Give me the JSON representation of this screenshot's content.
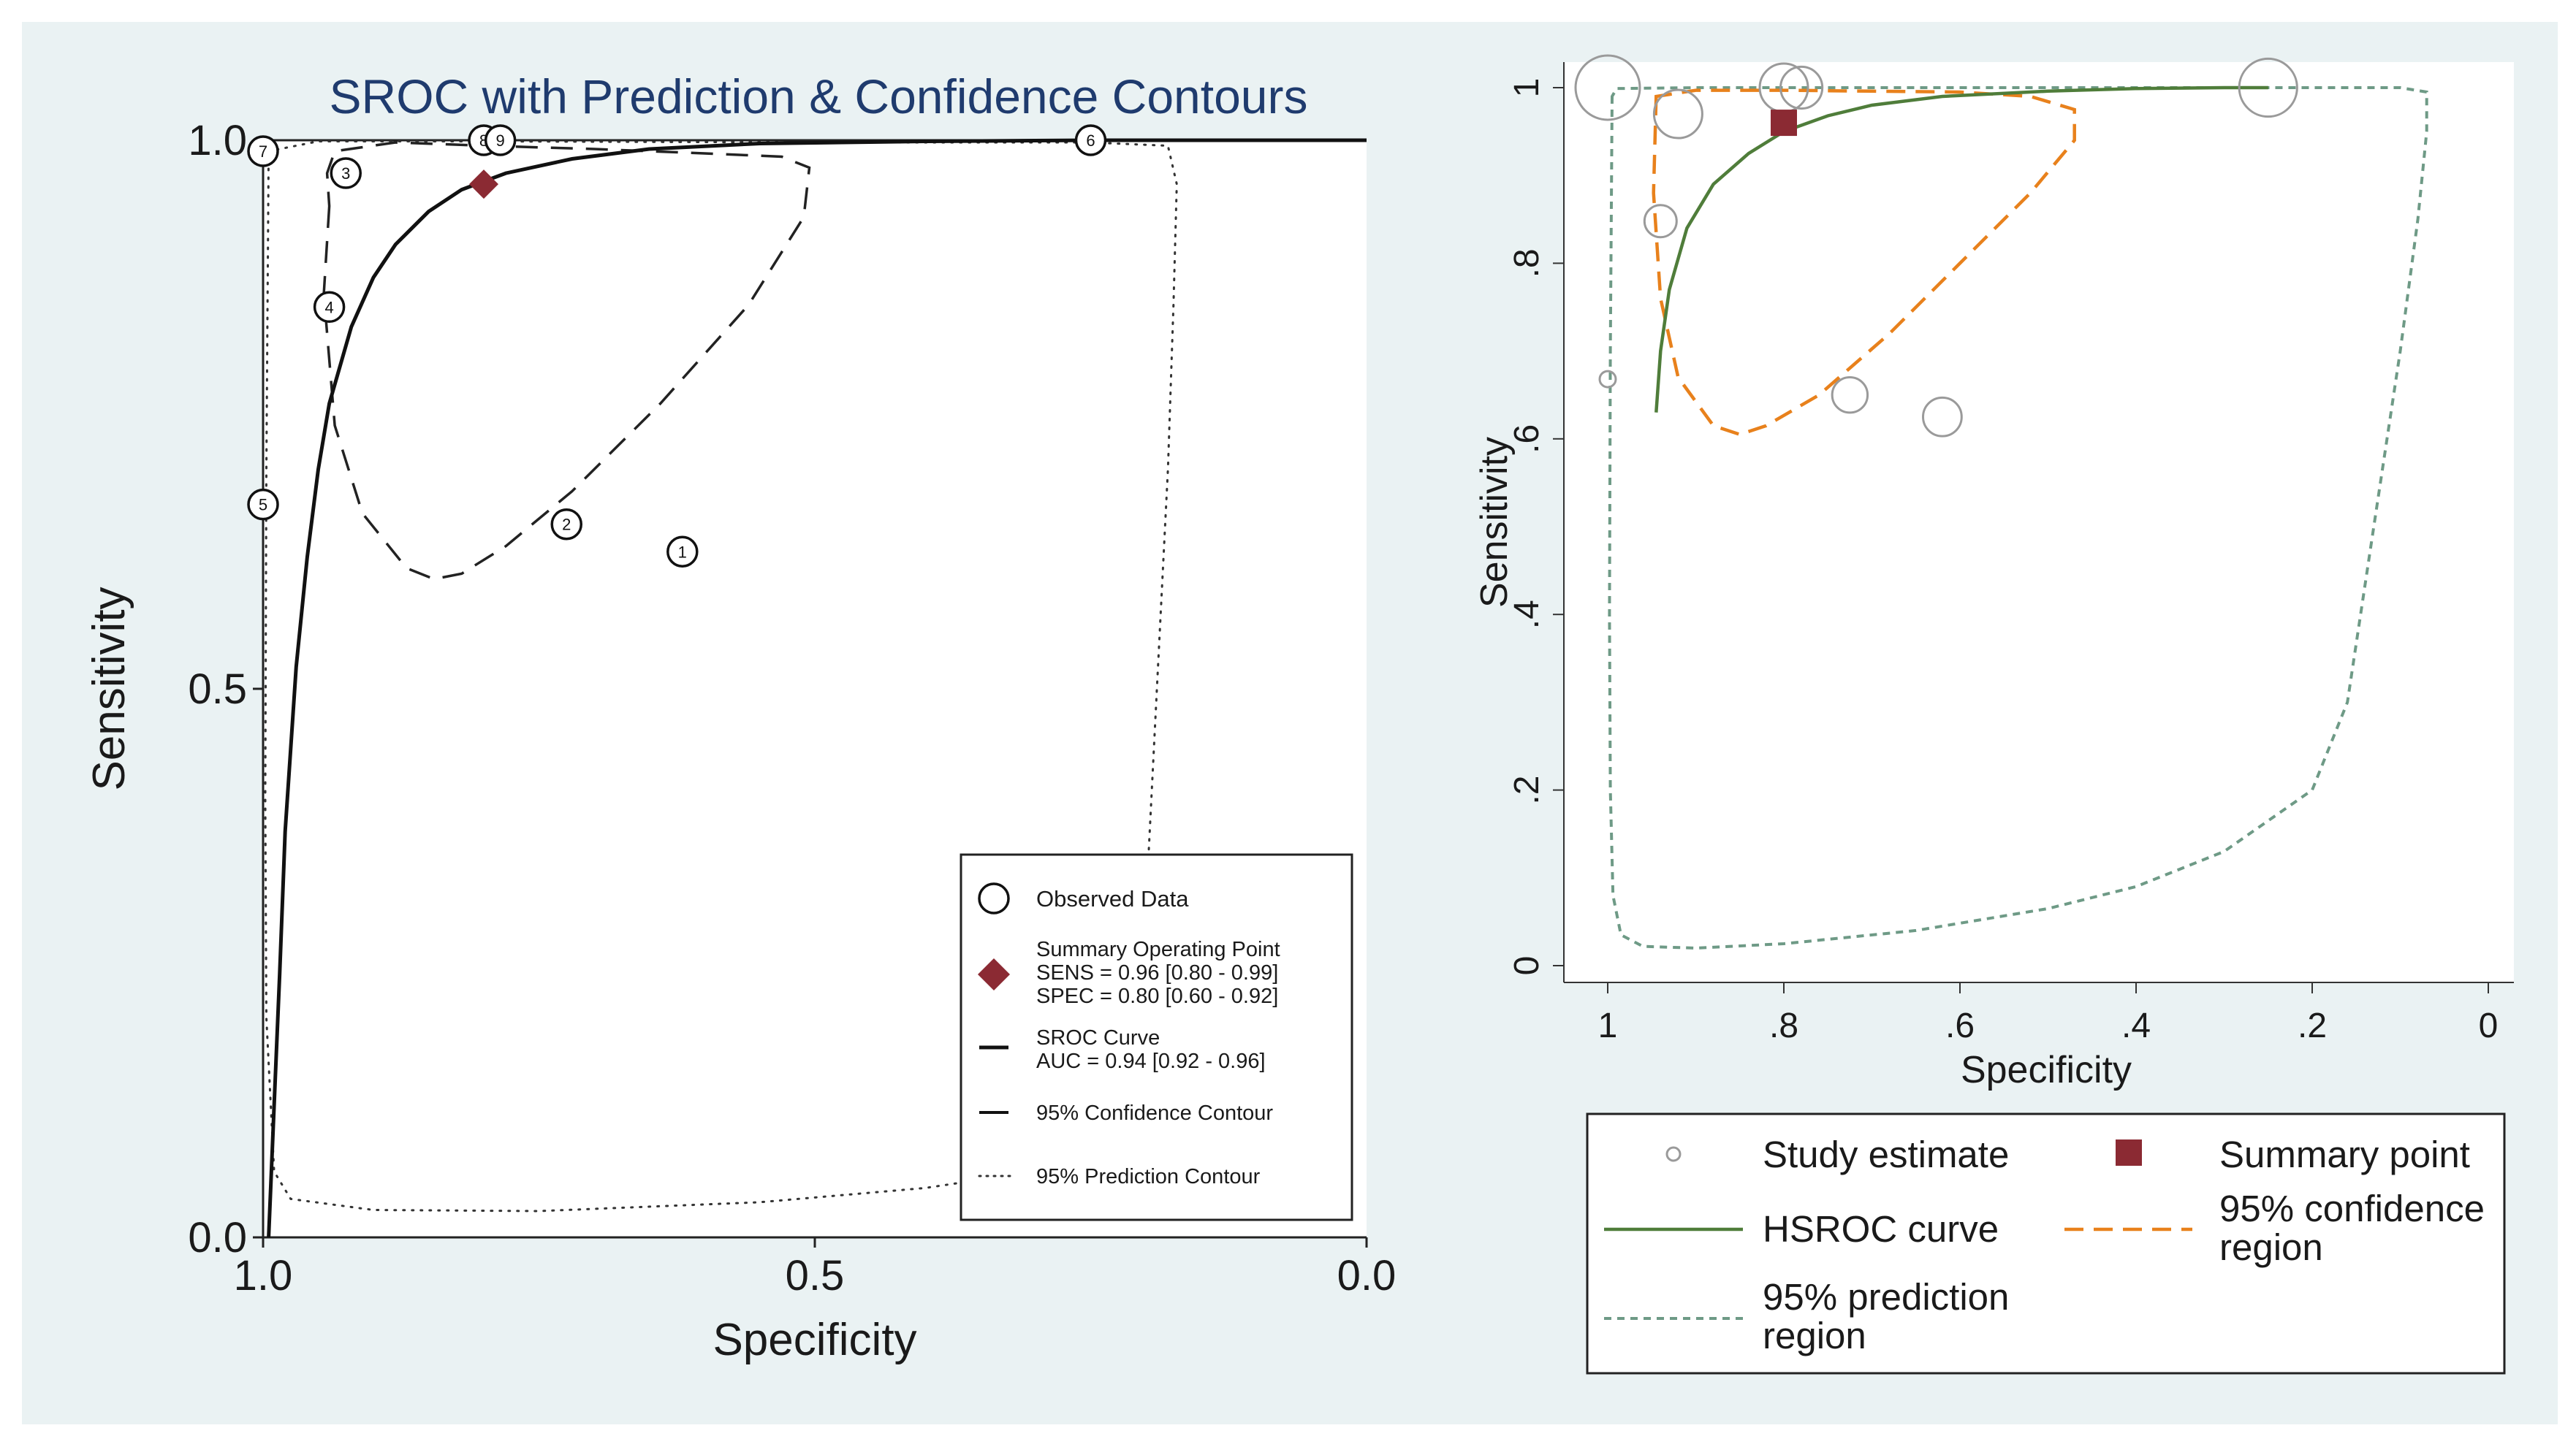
{
  "colors": {
    "panel_bg": "#eaf2f3",
    "plot_bg": "#ffffff",
    "title": "#1f3b6e",
    "summary_left": "#8b2a33",
    "summary_right": "#8b2a33",
    "hsroc": "#4f7d3a",
    "confidence_right": "#e8811c",
    "prediction_right": "#6e9a86",
    "study_right": "#9a9a9a",
    "text": "#1a1a1a"
  },
  "chart_data": [
    {
      "type": "scatter",
      "title": "SROC with Prediction & Confidence Contours",
      "xlabel": "Specificity",
      "ylabel": "Sensitivity",
      "xlim": [
        1.0,
        0.0
      ],
      "ylim": [
        0.0,
        1.0
      ],
      "x_reversed": true,
      "xticks": [
        "1.0",
        "0.5",
        "0.0"
      ],
      "xtick_values": [
        1.0,
        0.5,
        0.0
      ],
      "yticks": [
        "0.0",
        "0.5",
        "1.0"
      ],
      "ytick_values": [
        0.0,
        0.5,
        1.0
      ],
      "observed": [
        {
          "label": "1",
          "spec": 0.62,
          "sens": 0.625
        },
        {
          "label": "2",
          "spec": 0.725,
          "sens": 0.65
        },
        {
          "label": "3",
          "spec": 0.925,
          "sens": 0.97
        },
        {
          "label": "4",
          "spec": 0.94,
          "sens": 0.848
        },
        {
          "label": "5",
          "spec": 1.0,
          "sens": 0.668
        },
        {
          "label": "6",
          "spec": 0.25,
          "sens": 1.0
        },
        {
          "label": "7",
          "spec": 1.0,
          "sens": 0.99
        },
        {
          "label": "8",
          "spec": 0.8,
          "sens": 1.0
        },
        {
          "label": "9",
          "spec": 0.785,
          "sens": 1.0
        }
      ],
      "summary": {
        "spec": 0.8,
        "sens": 0.96
      },
      "sroc_curve": [
        [
          0.995,
          0.0
        ],
        [
          0.99,
          0.12
        ],
        [
          0.985,
          0.24
        ],
        [
          0.98,
          0.37
        ],
        [
          0.97,
          0.52
        ],
        [
          0.96,
          0.62
        ],
        [
          0.95,
          0.7
        ],
        [
          0.94,
          0.76
        ],
        [
          0.92,
          0.83
        ],
        [
          0.9,
          0.875
        ],
        [
          0.88,
          0.905
        ],
        [
          0.85,
          0.935
        ],
        [
          0.82,
          0.955
        ],
        [
          0.78,
          0.97
        ],
        [
          0.72,
          0.983
        ],
        [
          0.65,
          0.992
        ],
        [
          0.55,
          0.997
        ],
        [
          0.4,
          0.999
        ],
        [
          0.25,
          1.0
        ],
        [
          0.0,
          1.0
        ]
      ],
      "confidence_contour": [
        [
          0.94,
          0.94
        ],
        [
          0.945,
          0.86
        ],
        [
          0.935,
          0.74
        ],
        [
          0.91,
          0.66
        ],
        [
          0.87,
          0.61
        ],
        [
          0.845,
          0.6
        ],
        [
          0.82,
          0.605
        ],
        [
          0.78,
          0.63
        ],
        [
          0.72,
          0.68
        ],
        [
          0.64,
          0.76
        ],
        [
          0.56,
          0.85
        ],
        [
          0.51,
          0.93
        ],
        [
          0.505,
          0.975
        ],
        [
          0.53,
          0.985
        ],
        [
          0.6,
          0.988
        ],
        [
          0.7,
          0.992
        ],
        [
          0.8,
          0.995
        ],
        [
          0.88,
          0.998
        ],
        [
          0.935,
          0.99
        ],
        [
          0.942,
          0.97
        ],
        [
          0.94,
          0.94
        ]
      ],
      "prediction_contour": [
        [
          0.995,
          0.99
        ],
        [
          0.997,
          0.7
        ],
        [
          0.998,
          0.4
        ],
        [
          0.997,
          0.2
        ],
        [
          0.99,
          0.06
        ],
        [
          0.975,
          0.035
        ],
        [
          0.9,
          0.025
        ],
        [
          0.75,
          0.024
        ],
        [
          0.55,
          0.032
        ],
        [
          0.4,
          0.045
        ],
        [
          0.3,
          0.06
        ],
        [
          0.25,
          0.085
        ],
        [
          0.22,
          0.15
        ],
        [
          0.2,
          0.3
        ],
        [
          0.19,
          0.5
        ],
        [
          0.18,
          0.7
        ],
        [
          0.175,
          0.85
        ],
        [
          0.172,
          0.96
        ],
        [
          0.18,
          0.995
        ],
        [
          0.25,
          0.998
        ],
        [
          0.5,
          0.998
        ],
        [
          0.8,
          0.999
        ],
        [
          0.95,
          0.999
        ],
        [
          0.995,
          0.99
        ]
      ],
      "legend": {
        "placement": "bottom-right",
        "observed": "Observed Data",
        "summary_title": "Summary Operating Point",
        "sens_text": "SENS = 0.96 [0.80 - 0.99]",
        "spec_text": "SPEC = 0.80 [0.60 - 0.92]",
        "sroc_title": "SROC Curve",
        "auc_text": "AUC = 0.94 [0.92 - 0.96]",
        "confidence": "95% Confidence Contour",
        "prediction": "95% Prediction Contour"
      }
    },
    {
      "type": "scatter",
      "title": "",
      "xlabel": "Specificity",
      "ylabel": "Sensitivity",
      "xlim": [
        1.0,
        0.0
      ],
      "ylim": [
        0.0,
        1.0
      ],
      "x_reversed": true,
      "xticks": [
        "1",
        ".8",
        ".6",
        ".4",
        ".2",
        "0"
      ],
      "xtick_values": [
        1.0,
        0.8,
        0.6,
        0.4,
        0.2,
        0.0
      ],
      "yticks": [
        "0",
        ".2",
        ".4",
        ".6",
        ".8",
        "1"
      ],
      "ytick_values": [
        0.0,
        0.2,
        0.4,
        0.6,
        0.8,
        1.0
      ],
      "studies": [
        {
          "spec": 1.0,
          "sens": 1.0,
          "weight": 2.0
        },
        {
          "spec": 0.92,
          "sens": 0.97,
          "weight": 1.5
        },
        {
          "spec": 0.94,
          "sens": 0.848,
          "weight": 1.0
        },
        {
          "spec": 1.0,
          "sens": 0.668,
          "weight": 0.5
        },
        {
          "spec": 0.8,
          "sens": 1.0,
          "weight": 1.5
        },
        {
          "spec": 0.78,
          "sens": 1.0,
          "weight": 1.3
        },
        {
          "spec": 0.725,
          "sens": 0.65,
          "weight": 1.1
        },
        {
          "spec": 0.62,
          "sens": 0.625,
          "weight": 1.2
        },
        {
          "spec": 0.25,
          "sens": 1.0,
          "weight": 1.8
        }
      ],
      "summary": {
        "spec": 0.8,
        "sens": 0.96
      },
      "hsroc_curve": [
        [
          0.945,
          0.63
        ],
        [
          0.94,
          0.7
        ],
        [
          0.93,
          0.77
        ],
        [
          0.91,
          0.84
        ],
        [
          0.88,
          0.89
        ],
        [
          0.84,
          0.925
        ],
        [
          0.8,
          0.95
        ],
        [
          0.75,
          0.968
        ],
        [
          0.7,
          0.98
        ],
        [
          0.62,
          0.99
        ],
        [
          0.5,
          0.996
        ],
        [
          0.4,
          0.999
        ],
        [
          0.3,
          1.0
        ],
        [
          0.25,
          1.0
        ]
      ],
      "confidence_region": [
        [
          0.945,
          0.99
        ],
        [
          0.948,
          0.88
        ],
        [
          0.94,
          0.76
        ],
        [
          0.92,
          0.67
        ],
        [
          0.88,
          0.615
        ],
        [
          0.85,
          0.605
        ],
        [
          0.82,
          0.615
        ],
        [
          0.76,
          0.65
        ],
        [
          0.68,
          0.72
        ],
        [
          0.6,
          0.8
        ],
        [
          0.52,
          0.88
        ],
        [
          0.47,
          0.94
        ],
        [
          0.47,
          0.975
        ],
        [
          0.52,
          0.99
        ],
        [
          0.6,
          0.995
        ],
        [
          0.7,
          0.996
        ],
        [
          0.8,
          0.997
        ],
        [
          0.9,
          0.997
        ],
        [
          0.945,
          0.99
        ]
      ],
      "prediction_region": [
        [
          0.995,
          0.99
        ],
        [
          0.997,
          0.7
        ],
        [
          0.998,
          0.4
        ],
        [
          0.997,
          0.2
        ],
        [
          0.994,
          0.08
        ],
        [
          0.985,
          0.035
        ],
        [
          0.96,
          0.022
        ],
        [
          0.9,
          0.02
        ],
        [
          0.8,
          0.025
        ],
        [
          0.65,
          0.04
        ],
        [
          0.5,
          0.065
        ],
        [
          0.4,
          0.09
        ],
        [
          0.3,
          0.13
        ],
        [
          0.2,
          0.2
        ],
        [
          0.16,
          0.3
        ],
        [
          0.13,
          0.5
        ],
        [
          0.1,
          0.7
        ],
        [
          0.08,
          0.85
        ],
        [
          0.07,
          0.95
        ],
        [
          0.07,
          0.995
        ],
        [
          0.1,
          1.0
        ],
        [
          0.3,
          1.0
        ],
        [
          0.6,
          1.0
        ],
        [
          0.9,
          1.0
        ],
        [
          0.99,
          0.999
        ],
        [
          0.995,
          0.99
        ]
      ],
      "legend": {
        "placement": "bottom",
        "study": "Study estimate",
        "summary": "Summary point",
        "hsroc": "HSROC curve",
        "confidence_line1": "95% confidence",
        "confidence_line2": "region",
        "prediction_line1": "95% prediction",
        "prediction_line2": "region"
      }
    }
  ]
}
